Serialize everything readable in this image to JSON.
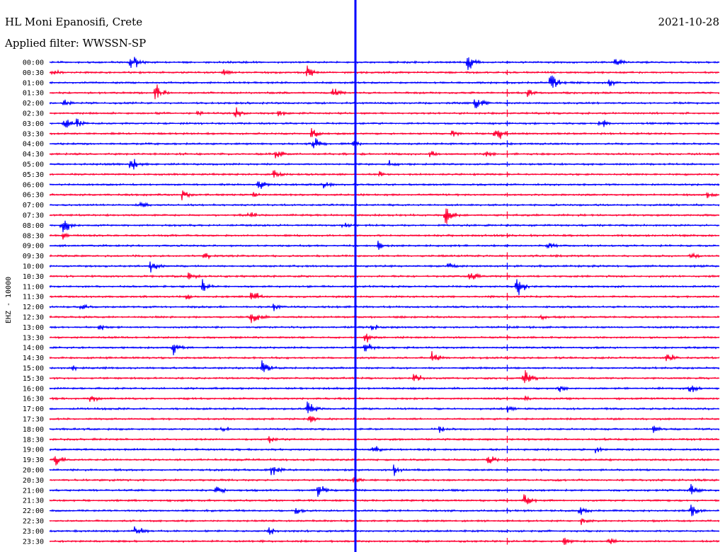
{
  "header": {
    "station": "HL Moni Epanosifi, Crete",
    "date": "2021-10-28",
    "filter": "Applied filter: WWSSN-SP"
  },
  "colors": {
    "primary_trace": "#0000ff",
    "secondary_trace": "#ff0033",
    "background": "#ffffff",
    "text": "#000000"
  },
  "chart_data": {
    "type": "line",
    "title": "HL Moni Epanosifi, Crete",
    "subtitle": "Applied filter: WWSSN-SP",
    "date": "2021-10-28",
    "ylabel": "EHZ - 10000",
    "xlabel": "",
    "grid": false,
    "row_minutes": 30,
    "row_labels": [
      "00:00",
      "00:30",
      "01:00",
      "01:30",
      "02:00",
      "02:30",
      "03:00",
      "03:30",
      "04:00",
      "04:30",
      "05:00",
      "05:30",
      "06:00",
      "06:30",
      "07:00",
      "07:30",
      "08:00",
      "08:30",
      "09:00",
      "09:30",
      "10:00",
      "10:30",
      "11:00",
      "11:30",
      "12:00",
      "12:30",
      "13:00",
      "13:30",
      "14:00",
      "14:30",
      "15:00",
      "15:30",
      "16:00",
      "16:30",
      "17:00",
      "17:30",
      "18:00",
      "18:30",
      "19:00",
      "19:30",
      "20:00",
      "20:30",
      "21:00",
      "21:30",
      "22:00",
      "22:30",
      "23:00",
      "23:30"
    ],
    "row_colors": [
      "#0000ff",
      "#ff0033"
    ],
    "persistent_spikes": [
      {
        "minute": 13.7,
        "amplitude": 60
      },
      {
        "minute": 20.5,
        "amplitude": 8
      }
    ],
    "events": [
      {
        "row": 0,
        "minute": 3.6,
        "amplitude": 6
      },
      {
        "row": 0,
        "minute": 18.7,
        "amplitude": 4
      },
      {
        "row": 0,
        "minute": 25.3,
        "amplitude": 3
      },
      {
        "row": 1,
        "minute": 0.1,
        "amplitude": 2
      },
      {
        "row": 1,
        "minute": 11.5,
        "amplitude": 3
      },
      {
        "row": 1,
        "minute": 7.7,
        "amplitude": 2
      },
      {
        "row": 2,
        "minute": 22.4,
        "amplitude": 5
      },
      {
        "row": 2,
        "minute": 25.0,
        "amplitude": 2
      },
      {
        "row": 3,
        "minute": 4.7,
        "amplitude": 5
      },
      {
        "row": 3,
        "minute": 12.6,
        "amplitude": 3
      },
      {
        "row": 3,
        "minute": 21.4,
        "amplitude": 2
      },
      {
        "row": 4,
        "minute": 0.6,
        "amplitude": 2
      },
      {
        "row": 4,
        "minute": 19.0,
        "amplitude": 4
      },
      {
        "row": 5,
        "minute": 8.3,
        "amplitude": 3
      },
      {
        "row": 5,
        "minute": 6.6,
        "amplitude": 2
      },
      {
        "row": 5,
        "minute": 10.2,
        "amplitude": 2
      },
      {
        "row": 6,
        "minute": 0.6,
        "amplitude": 3
      },
      {
        "row": 6,
        "minute": 24.6,
        "amplitude": 3
      },
      {
        "row": 6,
        "minute": 1.2,
        "amplitude": 2
      },
      {
        "row": 7,
        "minute": 11.7,
        "amplitude": 3
      },
      {
        "row": 7,
        "minute": 19.9,
        "amplitude": 5
      },
      {
        "row": 7,
        "minute": 18.0,
        "amplitude": 2
      },
      {
        "row": 8,
        "minute": 11.8,
        "amplitude": 3
      },
      {
        "row": 8,
        "minute": 13.5,
        "amplitude": 2
      },
      {
        "row": 9,
        "minute": 10.1,
        "amplitude": 3
      },
      {
        "row": 9,
        "minute": 17.0,
        "amplitude": 2
      },
      {
        "row": 9,
        "minute": 19.5,
        "amplitude": 2
      },
      {
        "row": 10,
        "minute": 3.6,
        "amplitude": 4
      },
      {
        "row": 10,
        "minute": 15.2,
        "amplitude": 2
      },
      {
        "row": 11,
        "minute": 10.0,
        "amplitude": 3
      },
      {
        "row": 11,
        "minute": 14.7,
        "amplitude": 2
      },
      {
        "row": 12,
        "minute": 9.3,
        "amplitude": 3
      },
      {
        "row": 12,
        "minute": 12.2,
        "amplitude": 2
      },
      {
        "row": 13,
        "minute": 5.9,
        "amplitude": 3
      },
      {
        "row": 13,
        "minute": 9.1,
        "amplitude": 2
      },
      {
        "row": 13,
        "minute": 29.4,
        "amplitude": 2
      },
      {
        "row": 14,
        "minute": 4.0,
        "amplitude": 2
      },
      {
        "row": 15,
        "minute": 8.9,
        "amplitude": 2
      },
      {
        "row": 15,
        "minute": 17.7,
        "amplitude": 5
      },
      {
        "row": 16,
        "minute": 0.5,
        "amplitude": 5
      },
      {
        "row": 16,
        "minute": 13.1,
        "amplitude": 2
      },
      {
        "row": 17,
        "minute": 0.6,
        "amplitude": 2
      },
      {
        "row": 18,
        "minute": 14.7,
        "amplitude": 2
      },
      {
        "row": 18,
        "minute": 22.3,
        "amplitude": 2
      },
      {
        "row": 19,
        "minute": 6.9,
        "amplitude": 2
      },
      {
        "row": 19,
        "minute": 28.7,
        "amplitude": 2
      },
      {
        "row": 20,
        "minute": 4.5,
        "amplitude": 3
      },
      {
        "row": 20,
        "minute": 17.8,
        "amplitude": 2
      },
      {
        "row": 21,
        "minute": 6.2,
        "amplitude": 3
      },
      {
        "row": 21,
        "minute": 18.8,
        "amplitude": 3
      },
      {
        "row": 22,
        "minute": 6.8,
        "amplitude": 3
      },
      {
        "row": 22,
        "minute": 20.9,
        "amplitude": 5
      },
      {
        "row": 23,
        "minute": 9.0,
        "amplitude": 4
      },
      {
        "row": 23,
        "minute": 6.1,
        "amplitude": 2
      },
      {
        "row": 24,
        "minute": 1.4,
        "amplitude": 2
      },
      {
        "row": 24,
        "minute": 10.0,
        "amplitude": 2
      },
      {
        "row": 25,
        "minute": 9.0,
        "amplitude": 5
      },
      {
        "row": 25,
        "minute": 22.0,
        "amplitude": 2
      },
      {
        "row": 26,
        "minute": 2.2,
        "amplitude": 2
      },
      {
        "row": 26,
        "minute": 14.4,
        "amplitude": 2
      },
      {
        "row": 27,
        "minute": 14.1,
        "amplitude": 3
      },
      {
        "row": 28,
        "minute": 5.5,
        "amplitude": 4
      },
      {
        "row": 28,
        "minute": 14.1,
        "amplitude": 3
      },
      {
        "row": 29,
        "minute": 17.1,
        "amplitude": 3
      },
      {
        "row": 29,
        "minute": 27.6,
        "amplitude": 3
      },
      {
        "row": 30,
        "minute": 9.5,
        "amplitude": 4
      },
      {
        "row": 30,
        "minute": 1.0,
        "amplitude": 2
      },
      {
        "row": 31,
        "minute": 16.3,
        "amplitude": 3
      },
      {
        "row": 31,
        "minute": 21.2,
        "amplitude": 5
      },
      {
        "row": 32,
        "minute": 28.6,
        "amplitude": 3
      },
      {
        "row": 32,
        "minute": 22.8,
        "amplitude": 2
      },
      {
        "row": 33,
        "minute": 1.8,
        "amplitude": 2
      },
      {
        "row": 33,
        "minute": 21.3,
        "amplitude": 2
      },
      {
        "row": 34,
        "minute": 11.5,
        "amplitude": 4
      },
      {
        "row": 34,
        "minute": 20.5,
        "amplitude": 2
      },
      {
        "row": 35,
        "minute": 11.6,
        "amplitude": 2
      },
      {
        "row": 36,
        "minute": 7.7,
        "amplitude": 2
      },
      {
        "row": 36,
        "minute": 17.4,
        "amplitude": 2
      },
      {
        "row": 36,
        "minute": 27.0,
        "amplitude": 2
      },
      {
        "row": 37,
        "minute": 9.8,
        "amplitude": 2
      },
      {
        "row": 38,
        "minute": 14.5,
        "amplitude": 2
      },
      {
        "row": 38,
        "minute": 24.4,
        "amplitude": 2
      },
      {
        "row": 39,
        "minute": 0.2,
        "amplitude": 3
      },
      {
        "row": 39,
        "minute": 19.6,
        "amplitude": 3
      },
      {
        "row": 40,
        "minute": 9.9,
        "amplitude": 4
      },
      {
        "row": 40,
        "minute": 15.4,
        "amplitude": 3
      },
      {
        "row": 41,
        "minute": 13.6,
        "amplitude": 2
      },
      {
        "row": 42,
        "minute": 7.4,
        "amplitude": 3
      },
      {
        "row": 42,
        "minute": 12.0,
        "amplitude": 4
      },
      {
        "row": 42,
        "minute": 28.7,
        "amplitude": 3
      },
      {
        "row": 43,
        "minute": 21.2,
        "amplitude": 4
      },
      {
        "row": 44,
        "minute": 11.0,
        "amplitude": 2
      },
      {
        "row": 44,
        "minute": 23.7,
        "amplitude": 3
      },
      {
        "row": 44,
        "minute": 28.7,
        "amplitude": 3
      },
      {
        "row": 45,
        "minute": 23.8,
        "amplitude": 2
      },
      {
        "row": 46,
        "minute": 3.8,
        "amplitude": 3
      },
      {
        "row": 46,
        "minute": 9.8,
        "amplitude": 2
      },
      {
        "row": 47,
        "minute": 23.0,
        "amplitude": 2
      },
      {
        "row": 47,
        "minute": 25.0,
        "amplitude": 2
      }
    ]
  }
}
